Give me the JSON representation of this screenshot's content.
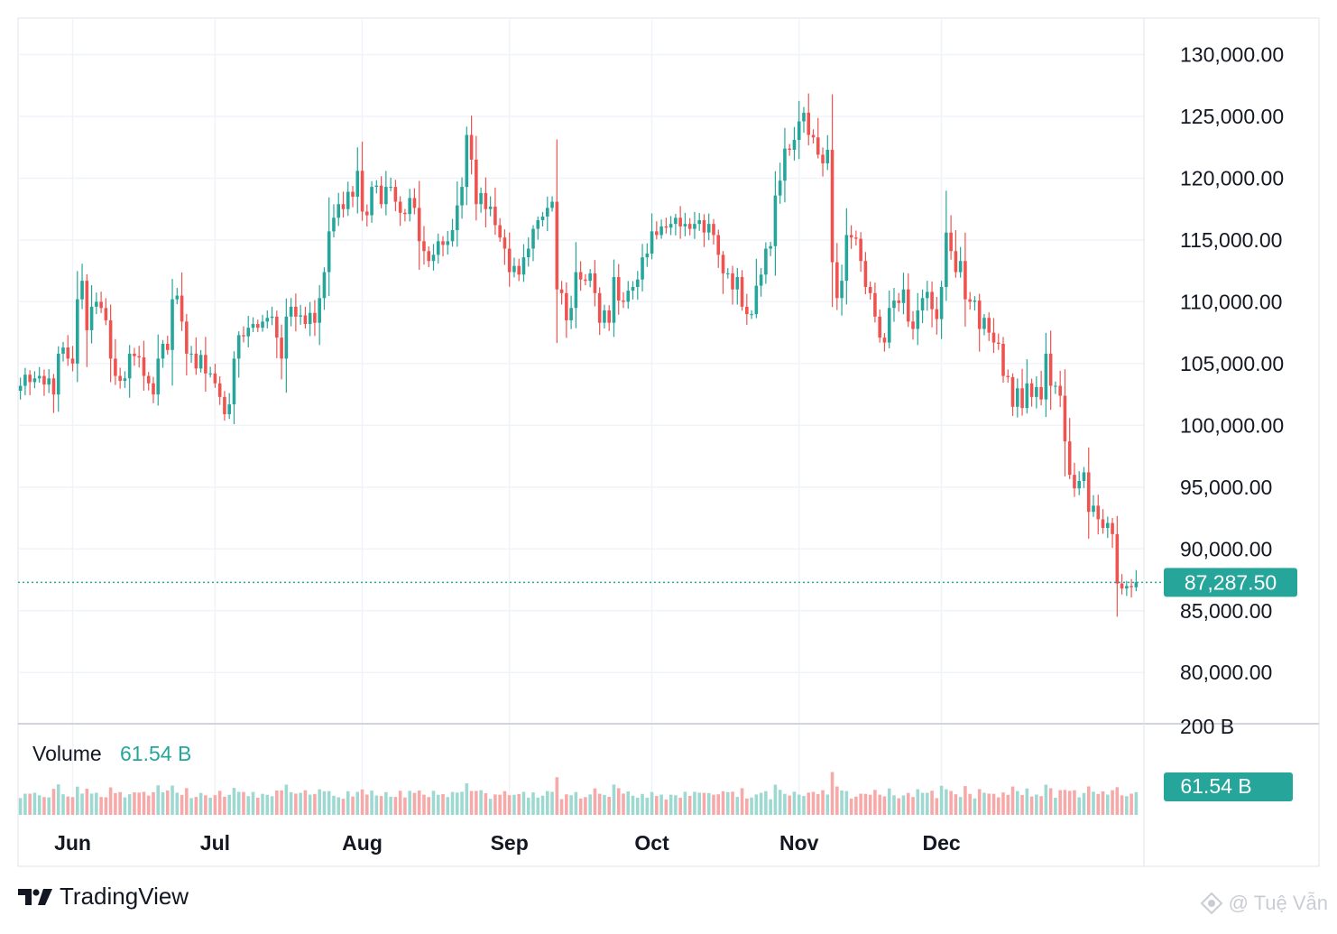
{
  "brand": {
    "name": "TradingView"
  },
  "watermark": {
    "text": "@ Tuệ Vẫn"
  },
  "volume": {
    "label": "Volume",
    "value": "61.54 B",
    "axis_label": "61.54 B",
    "axis_tick": "200 B"
  },
  "price": {
    "last_label": "87,287.50",
    "last": 87287.5
  },
  "colors": {
    "up": "#26a69a",
    "down": "#ef5350",
    "up_vol": "#9ed9d1",
    "down_vol": "#f7a9a9",
    "grid": "#f0f3fa",
    "last": "#26a69a"
  },
  "chart_data": {
    "type": "candlestick",
    "title": "",
    "y_ticks": [
      "130,000.00",
      "125,000.00",
      "120,000.00",
      "115,000.00",
      "110,000.00",
      "105,000.00",
      "100,000.00",
      "95,000.00",
      "90,000.00",
      "85,000.00",
      "80,000.00"
    ],
    "y_tick_values": [
      130000,
      125000,
      120000,
      115000,
      110000,
      105000,
      100000,
      95000,
      90000,
      85000,
      80000
    ],
    "x_ticks": [
      "Jun",
      "Jul",
      "Aug",
      "Sep",
      "Oct",
      "Nov",
      "Dec"
    ],
    "x_tick_index": [
      11,
      41,
      72,
      103,
      133,
      164,
      194
    ],
    "ylim": [
      76000,
      131500
    ],
    "closes": [
      103200,
      104100,
      103500,
      103800,
      104000,
      103300,
      103800,
      102500,
      105800,
      106300,
      105400,
      105000,
      110200,
      111700,
      107700,
      109600,
      110000,
      109500,
      108500,
      105400,
      104000,
      103600,
      103800,
      105800,
      105600,
      105500,
      104000,
      103400,
      102500,
      105400,
      106600,
      106100,
      110200,
      110500,
      108400,
      105800,
      105800,
      104600,
      105700,
      104200,
      104200,
      103400,
      102300,
      100900,
      101700,
      105400,
      107300,
      107200,
      107900,
      108200,
      107900,
      108400,
      108700,
      108800,
      107100,
      105400,
      108800,
      109600,
      108800,
      108900,
      108200,
      109100,
      108300,
      110300,
      112400,
      115700,
      116800,
      117900,
      117500,
      118900,
      118500,
      120600,
      117300,
      117000,
      119300,
      119400,
      117900,
      119300,
      119300,
      118100,
      117200,
      117100,
      118400,
      117600,
      114900,
      114100,
      113300,
      113800,
      114900,
      114600,
      114900,
      115800,
      117800,
      119300,
      123500,
      121500,
      117900,
      118800,
      117500,
      117700,
      116200,
      115200,
      114300,
      112400,
      112900,
      112200,
      113600,
      114300,
      115900,
      116600,
      116900,
      117600,
      118100,
      111000,
      110700,
      108500,
      109500,
      112400,
      111800,
      111700,
      112300,
      110700,
      108300,
      109300,
      108300,
      112000,
      110100,
      110000,
      110900,
      111200,
      111800,
      113600,
      113900,
      115700,
      115400,
      116100,
      116000,
      116300,
      116800,
      116100,
      116300,
      115900,
      116300,
      116600,
      115600,
      116300,
      115400,
      113800,
      112300,
      112300,
      111000,
      112000,
      109600,
      109000,
      109000,
      111300,
      112200,
      114300,
      114500,
      118600,
      119800,
      122400,
      122300,
      123100,
      124600,
      125300,
      123500,
      123300,
      121900,
      121200,
      122300,
      113200,
      110300,
      111700,
      115400,
      115200,
      115100,
      113300,
      111200,
      110700,
      108800,
      107100,
      106700,
      109500,
      110100,
      109900,
      111000,
      108400,
      107800,
      109300,
      110300,
      110800,
      109400,
      108600,
      111200,
      115600,
      114100,
      112400,
      113300,
      110200,
      110000,
      110100,
      107800,
      108700,
      107500,
      106700,
      106600,
      104000,
      103900,
      101500,
      103000,
      101400,
      103400,
      102300,
      103100,
      102100,
      105800,
      103200,
      103200,
      102400,
      98700,
      96000,
      94900,
      95500,
      96200,
      93000,
      93500,
      92400,
      91700,
      92100,
      91200,
      87200,
      86800,
      87000,
      86900,
      87300
    ],
    "volume_unit": "B",
    "volume_max": 200
  }
}
